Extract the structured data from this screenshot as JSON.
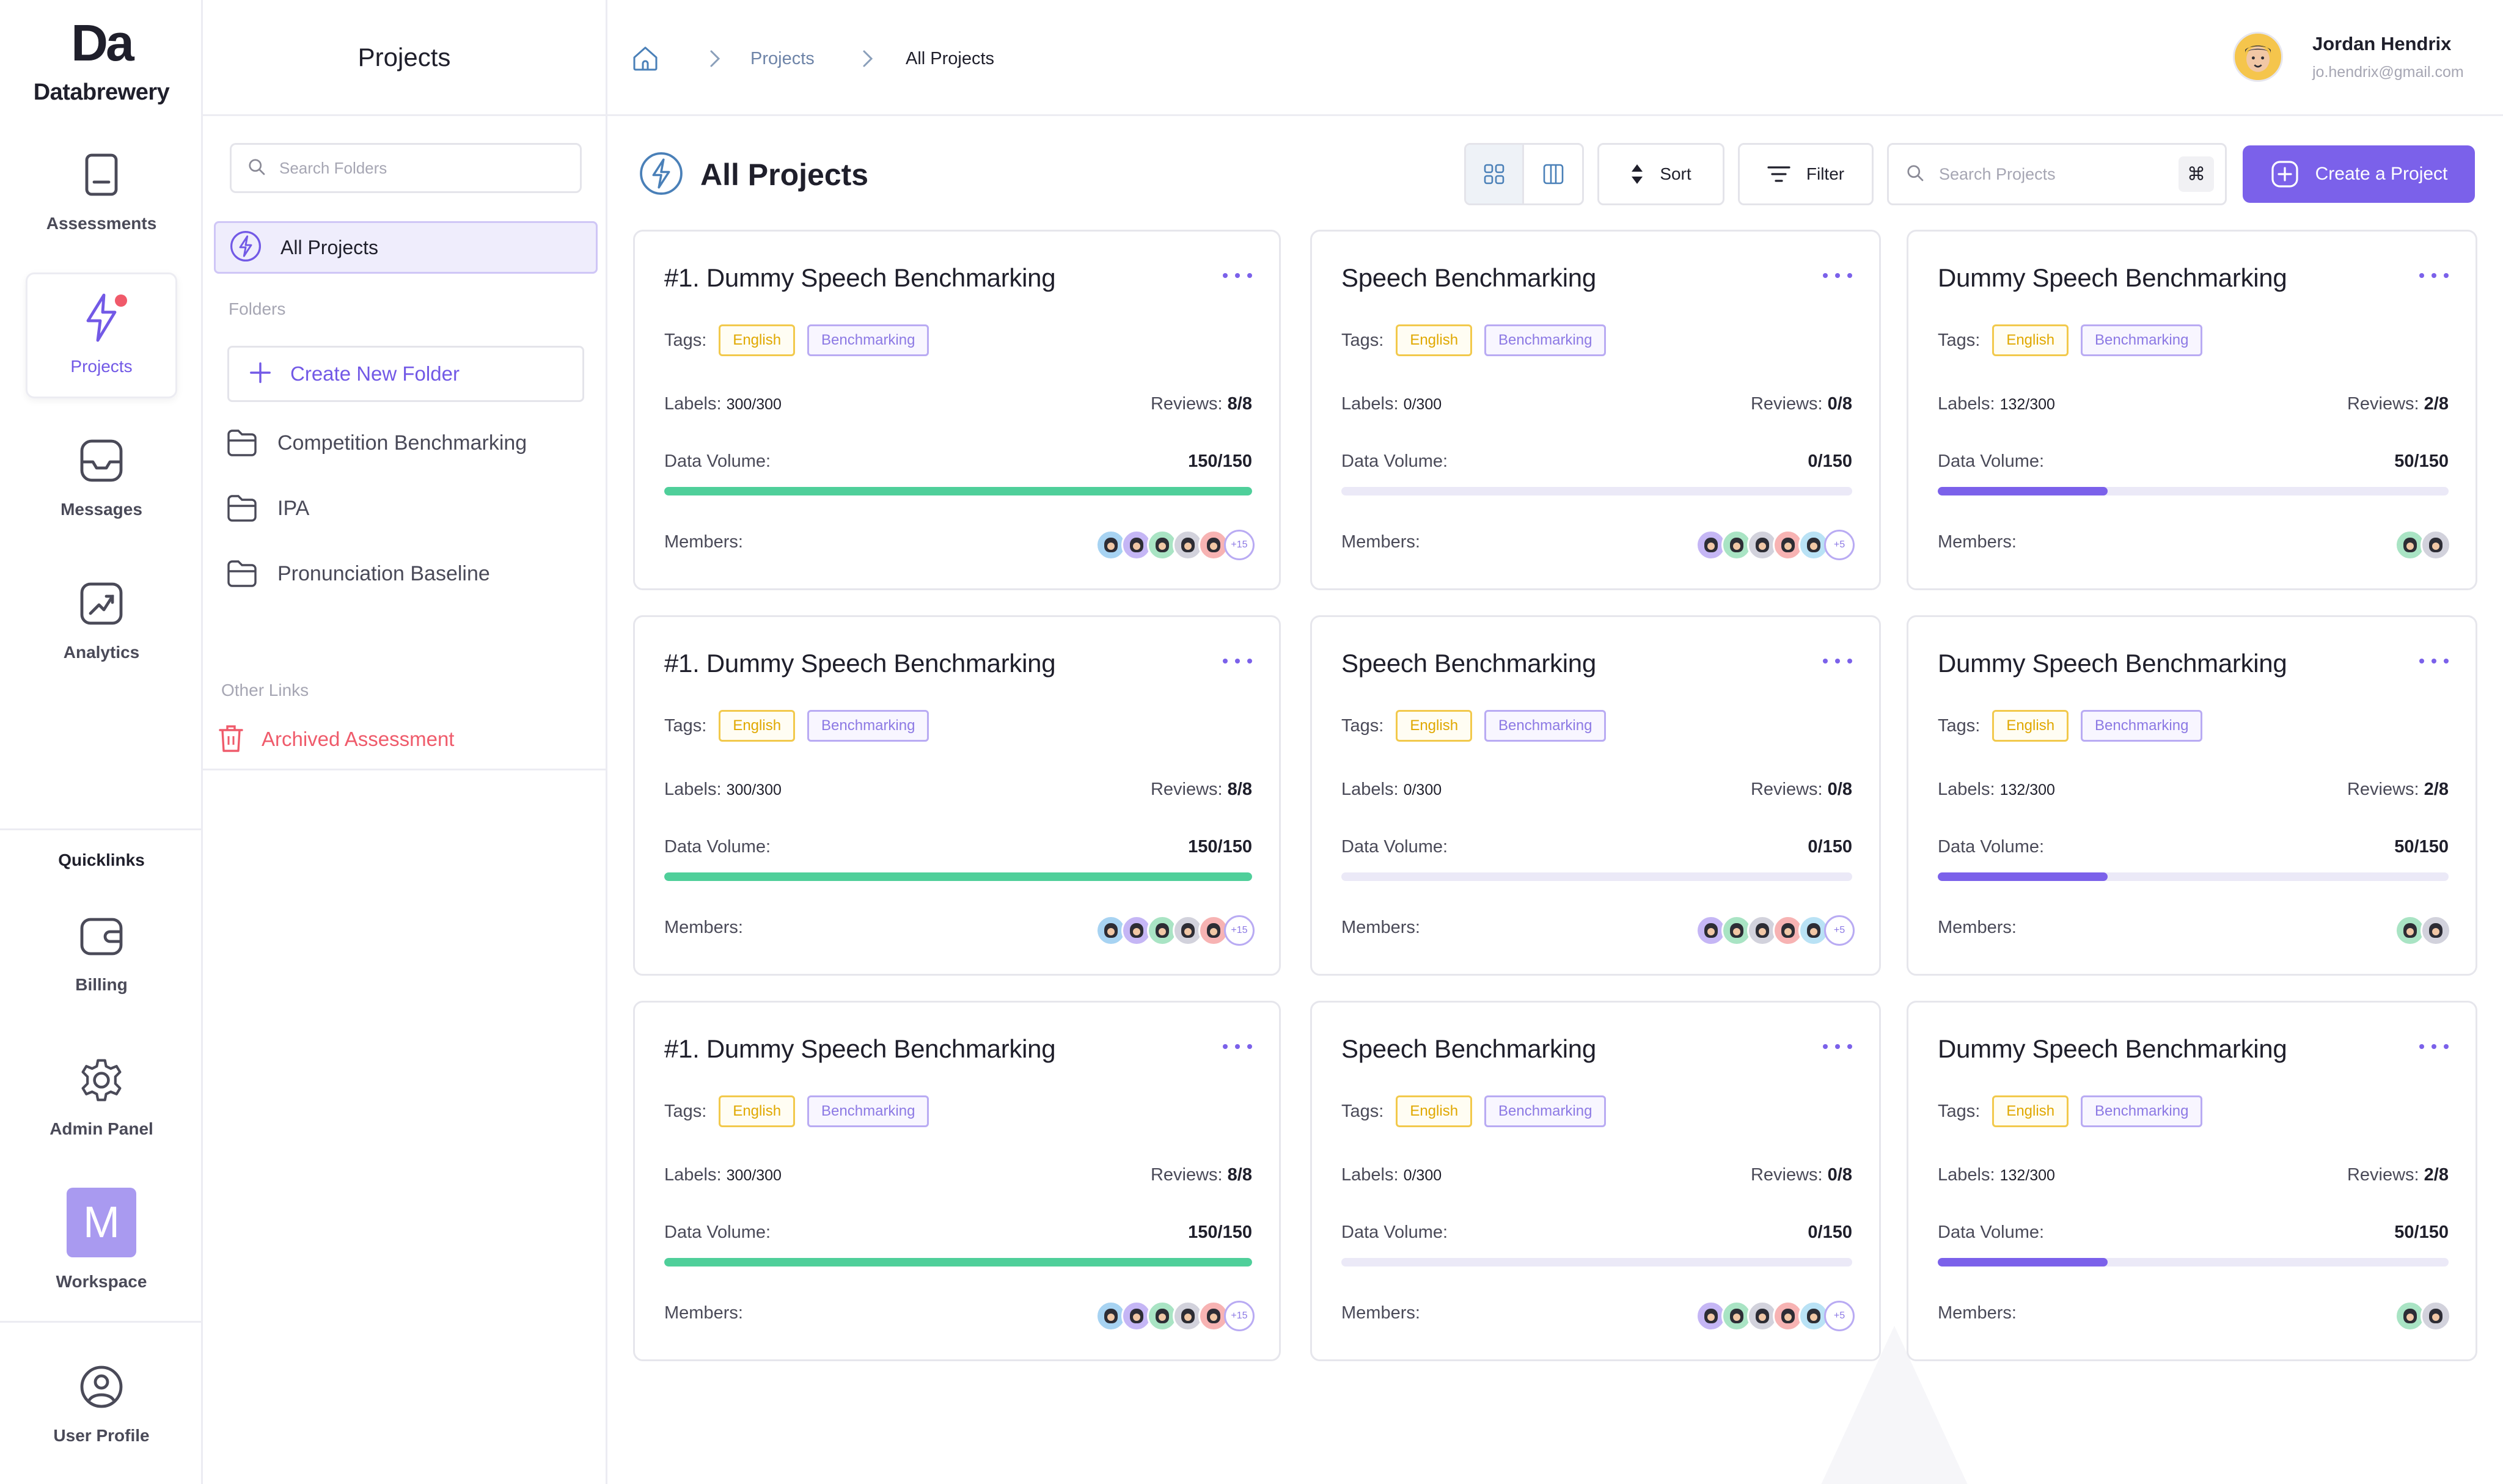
{
  "brand": {
    "mark": "Da",
    "name": "Databrewery"
  },
  "rail": {
    "items": [
      {
        "label": "Assessments",
        "icon": "document-icon"
      },
      {
        "label": "Projects",
        "icon": "lightning-icon",
        "active": true
      },
      {
        "label": "Messages",
        "icon": "inbox-icon"
      },
      {
        "label": "Analytics",
        "icon": "chart-icon"
      }
    ],
    "quicklinks_title": "Quicklinks",
    "quicklinks": [
      {
        "label": "Billing",
        "icon": "wallet-icon"
      },
      {
        "label": "Admin Panel",
        "icon": "gear-icon"
      },
      {
        "label": "Workspace",
        "initial": "M"
      }
    ],
    "profile": {
      "label": "User Profile",
      "icon": "user-icon"
    }
  },
  "folders": {
    "title": "Projects",
    "search_placeholder": "Search Folders",
    "all_projects": "All Projects",
    "section_folders": "Folders",
    "create_new": "Create New Folder",
    "items": [
      "Competition Benchmarking",
      "IPA",
      "Pronunciation Baseline"
    ],
    "section_other": "Other Links",
    "archived": "Archived Assessment"
  },
  "breadcrumb": {
    "projects": "Projects",
    "current": "All Projects"
  },
  "user": {
    "name": "Jordan Hendrix",
    "email": "jo.hendrix@gmail.com"
  },
  "toolbar": {
    "title": "All Projects",
    "sort": "Sort",
    "filter": "Filter",
    "search_placeholder": "Search Projects",
    "shortcut": "⌘",
    "create": "Create a Project"
  },
  "card_labels": {
    "tags": "Tags:",
    "labels": "Labels:",
    "reviews": "Reviews:",
    "data_volume": "Data Volume:",
    "members": "Members:"
  },
  "colors": {
    "accent": "#7b61ea",
    "green": "#4fcf9a",
    "track": "#ebe9f7",
    "danger": "#ef5b6b"
  },
  "projects": [
    {
      "title": "#1. Dummy Speech Benchmarking",
      "tags": [
        "English",
        "Benchmarking"
      ],
      "labels": "300/300",
      "reviews": "8/8",
      "volume": "150/150",
      "progress": 1.0,
      "fill": "green",
      "members": 5,
      "extra": "+15"
    },
    {
      "title": "Speech Benchmarking",
      "tags": [
        "English",
        "Benchmarking"
      ],
      "labels": "0/300",
      "reviews": "0/8",
      "volume": "0/150",
      "progress": 0.0,
      "fill": "accent",
      "members": 5,
      "extra": "+5"
    },
    {
      "title": "Dummy Speech Benchmarking",
      "tags": [
        "English",
        "Benchmarking"
      ],
      "labels": "132/300",
      "reviews": "2/8",
      "volume": "50/150",
      "progress": 0.333,
      "fill": "accent",
      "members": 2,
      "extra": ""
    },
    {
      "title": "#1. Dummy Speech Benchmarking",
      "tags": [
        "English",
        "Benchmarking"
      ],
      "labels": "300/300",
      "reviews": "8/8",
      "volume": "150/150",
      "progress": 1.0,
      "fill": "green",
      "members": 5,
      "extra": "+15"
    },
    {
      "title": "Speech Benchmarking",
      "tags": [
        "English",
        "Benchmarking"
      ],
      "labels": "0/300",
      "reviews": "0/8",
      "volume": "0/150",
      "progress": 0.0,
      "fill": "accent",
      "members": 5,
      "extra": "+5"
    },
    {
      "title": "Dummy Speech Benchmarking",
      "tags": [
        "English",
        "Benchmarking"
      ],
      "labels": "132/300",
      "reviews": "2/8",
      "volume": "50/150",
      "progress": 0.333,
      "fill": "accent",
      "members": 2,
      "extra": ""
    },
    {
      "title": "#1. Dummy Speech Benchmarking",
      "tags": [
        "English",
        "Benchmarking"
      ],
      "labels": "300/300",
      "reviews": "8/8",
      "volume": "150/150",
      "progress": 1.0,
      "fill": "green",
      "members": 5,
      "extra": "+15"
    },
    {
      "title": "Speech Benchmarking",
      "tags": [
        "English",
        "Benchmarking"
      ],
      "labels": "0/300",
      "reviews": "0/8",
      "volume": "0/150",
      "progress": 0.0,
      "fill": "accent",
      "members": 5,
      "extra": "+5"
    },
    {
      "title": "Dummy Speech Benchmarking",
      "tags": [
        "English",
        "Benchmarking"
      ],
      "labels": "132/300",
      "reviews": "2/8",
      "volume": "50/150",
      "progress": 0.333,
      "fill": "accent",
      "members": 2,
      "extra": ""
    }
  ]
}
